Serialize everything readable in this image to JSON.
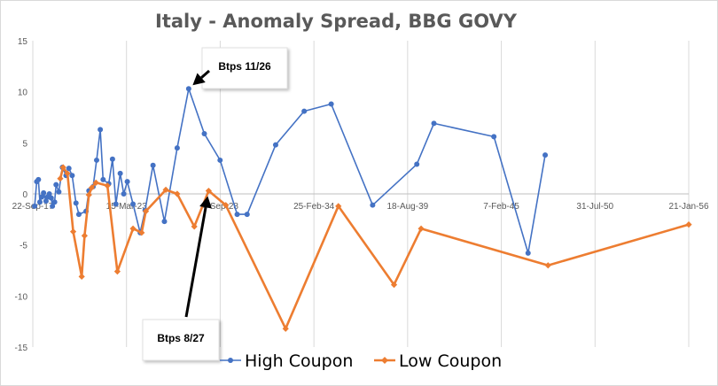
{
  "chart_data": {
    "type": "line",
    "title": "Italy - Anomaly Spread, BBG GOVY",
    "xlabel": "",
    "ylabel": "",
    "x_axis": {
      "type": "date",
      "min": "2017-09-22",
      "max": "2056-01-21",
      "tick_labels": [
        "22-Sep-17",
        "15-Mar-23",
        "4-Sep-28",
        "25-Feb-34",
        "18-Aug-39",
        "7-Feb-45",
        "31-Jul-50",
        "21-Jan-56"
      ]
    },
    "y_axis": {
      "min": -15,
      "max": 15,
      "ticks": [
        -15,
        -10,
        -5,
        0,
        5,
        10,
        15
      ]
    },
    "grid": {
      "vertical": true,
      "horizontal": false
    },
    "legend": {
      "position": "bottom"
    },
    "series": [
      {
        "name": "High Coupon",
        "color": "#4472C4",
        "marker": "circle",
        "points": [
          [
            "2017-11-01",
            -1.2
          ],
          [
            "2017-12-15",
            1.2
          ],
          [
            "2018-01-20",
            1.4
          ],
          [
            "2018-02-20",
            -0.8
          ],
          [
            "2018-04-01",
            -0.3
          ],
          [
            "2018-05-10",
            0.1
          ],
          [
            "2018-07-01",
            -0.7
          ],
          [
            "2018-08-01",
            -0.3
          ],
          [
            "2018-09-10",
            0.0
          ],
          [
            "2018-10-20",
            -0.4
          ],
          [
            "2018-11-15",
            -1.2
          ],
          [
            "2019-01-01",
            -0.8
          ],
          [
            "2019-02-01",
            0.9
          ],
          [
            "2019-04-01",
            0.2
          ],
          [
            "2019-06-15",
            2.6
          ],
          [
            "2019-09-01",
            1.8
          ],
          [
            "2019-11-01",
            2.5
          ],
          [
            "2020-01-10",
            1.8
          ],
          [
            "2020-04-01",
            -0.9
          ],
          [
            "2020-06-01",
            -2.0
          ],
          [
            "2020-11-01",
            -1.7
          ],
          [
            "2021-01-01",
            0.3
          ],
          [
            "2021-04-01",
            0.7
          ],
          [
            "2021-06-15",
            3.3
          ],
          [
            "2021-09-01",
            6.3
          ],
          [
            "2021-11-01",
            1.4
          ],
          [
            "2022-03-01",
            1.0
          ],
          [
            "2022-05-20",
            3.4
          ],
          [
            "2022-08-01",
            -1.0
          ],
          [
            "2022-11-01",
            2.0
          ],
          [
            "2023-01-15",
            0.0
          ],
          [
            "2023-04-01",
            1.2
          ],
          [
            "2023-08-01",
            -1.0
          ],
          [
            "2024-01-01",
            -3.8
          ],
          [
            "2024-04-15",
            -1.6
          ],
          [
            "2024-10-01",
            2.8
          ],
          [
            "2025-06-01",
            -2.7
          ],
          [
            "2026-03-01",
            4.5
          ],
          [
            "2026-11-01",
            10.3
          ],
          [
            "2027-10-01",
            5.9
          ],
          [
            "2028-09-01",
            3.3
          ],
          [
            "2029-09-01",
            -2.0
          ],
          [
            "2030-04-01",
            -2.0
          ],
          [
            "2031-12-01",
            4.8
          ],
          [
            "2033-08-01",
            8.1
          ],
          [
            "2035-03-01",
            8.8
          ],
          [
            "2037-08-01",
            -1.1
          ],
          [
            "2040-03-01",
            2.9
          ],
          [
            "2041-03-01",
            6.9
          ],
          [
            "2044-09-01",
            5.6
          ],
          [
            "2046-09-01",
            -5.8
          ],
          [
            "2047-09-01",
            3.8
          ]
        ]
      },
      {
        "name": "Low Coupon",
        "color": "#ED7D31",
        "marker": "diamond",
        "points": [
          [
            "2019-05-01",
            1.5
          ],
          [
            "2019-07-01",
            2.6
          ],
          [
            "2019-10-01",
            2.0
          ],
          [
            "2020-02-01",
            -3.7
          ],
          [
            "2020-08-01",
            -8.1
          ],
          [
            "2020-10-01",
            -4.1
          ],
          [
            "2021-01-01",
            -0.1
          ],
          [
            "2021-03-01",
            0.6
          ],
          [
            "2021-06-01",
            1.1
          ],
          [
            "2022-02-01",
            0.8
          ],
          [
            "2022-09-01",
            -7.6
          ],
          [
            "2023-08-01",
            -3.4
          ],
          [
            "2024-02-01",
            -3.8
          ],
          [
            "2024-05-01",
            -1.7
          ],
          [
            "2025-07-01",
            0.4
          ],
          [
            "2026-03-01",
            0.0
          ],
          [
            "2027-03-01",
            -3.2
          ],
          [
            "2028-01-01",
            0.3
          ],
          [
            "2029-01-01",
            -1.1
          ],
          [
            "2032-07-01",
            -13.2
          ],
          [
            "2035-08-01",
            -1.2
          ],
          [
            "2038-11-01",
            -8.9
          ],
          [
            "2040-06-01",
            -3.4
          ],
          [
            "2047-11-01",
            -7.0
          ],
          [
            "2056-01-21",
            -3.0
          ]
        ]
      }
    ],
    "annotations": [
      {
        "text": "Btps 11/26",
        "target": [
          "2026-11-01",
          10.3
        ]
      },
      {
        "text": "Btps 8/27",
        "target": [
          "2028-01-01",
          0.3
        ]
      }
    ]
  }
}
